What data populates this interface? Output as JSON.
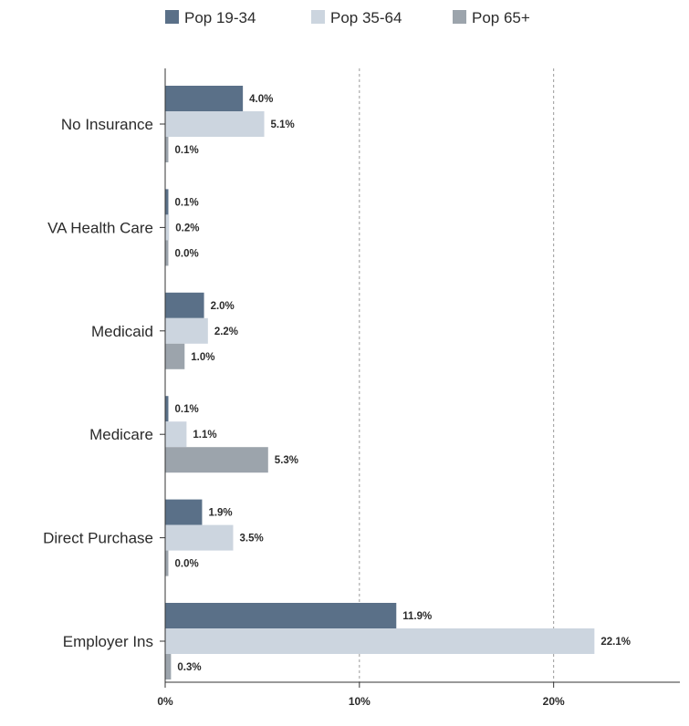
{
  "chart_data": {
    "type": "bar",
    "orientation": "horizontal",
    "categories": [
      "No Insurance",
      "VA Health Care",
      "Medicaid",
      "Medicare",
      "Direct Purchase",
      "Employer Ins"
    ],
    "series": [
      {
        "name": "Pop 19-34",
        "color": "#5a7088",
        "values": [
          4.0,
          0.1,
          2.0,
          0.1,
          1.9,
          11.9
        ]
      },
      {
        "name": "Pop 35-64",
        "color": "#ccd5df",
        "values": [
          5.1,
          0.2,
          2.2,
          1.1,
          3.5,
          22.1
        ]
      },
      {
        "name": "Pop 65+",
        "color": "#9ca4ac",
        "values": [
          0.1,
          0.0,
          1.0,
          5.3,
          0.0,
          0.3
        ]
      }
    ],
    "data_labels": [
      [
        "4.0%",
        "0.1%",
        "2.0%",
        "0.1%",
        "1.9%",
        "11.9%"
      ],
      [
        "5.1%",
        "0.2%",
        "2.2%",
        "1.1%",
        "3.5%",
        "22.1%"
      ],
      [
        "0.1%",
        "0.0%",
        "1.0%",
        "5.3%",
        "0.0%",
        "0.3%"
      ]
    ],
    "xlim": [
      0,
      26.5
    ],
    "x_ticks": [
      0,
      10,
      20
    ],
    "x_tick_labels": [
      "0%",
      "10%",
      "20%"
    ],
    "grid": "vertical dashed",
    "legend": "top-center",
    "title": "",
    "xlabel": "",
    "ylabel": ""
  }
}
